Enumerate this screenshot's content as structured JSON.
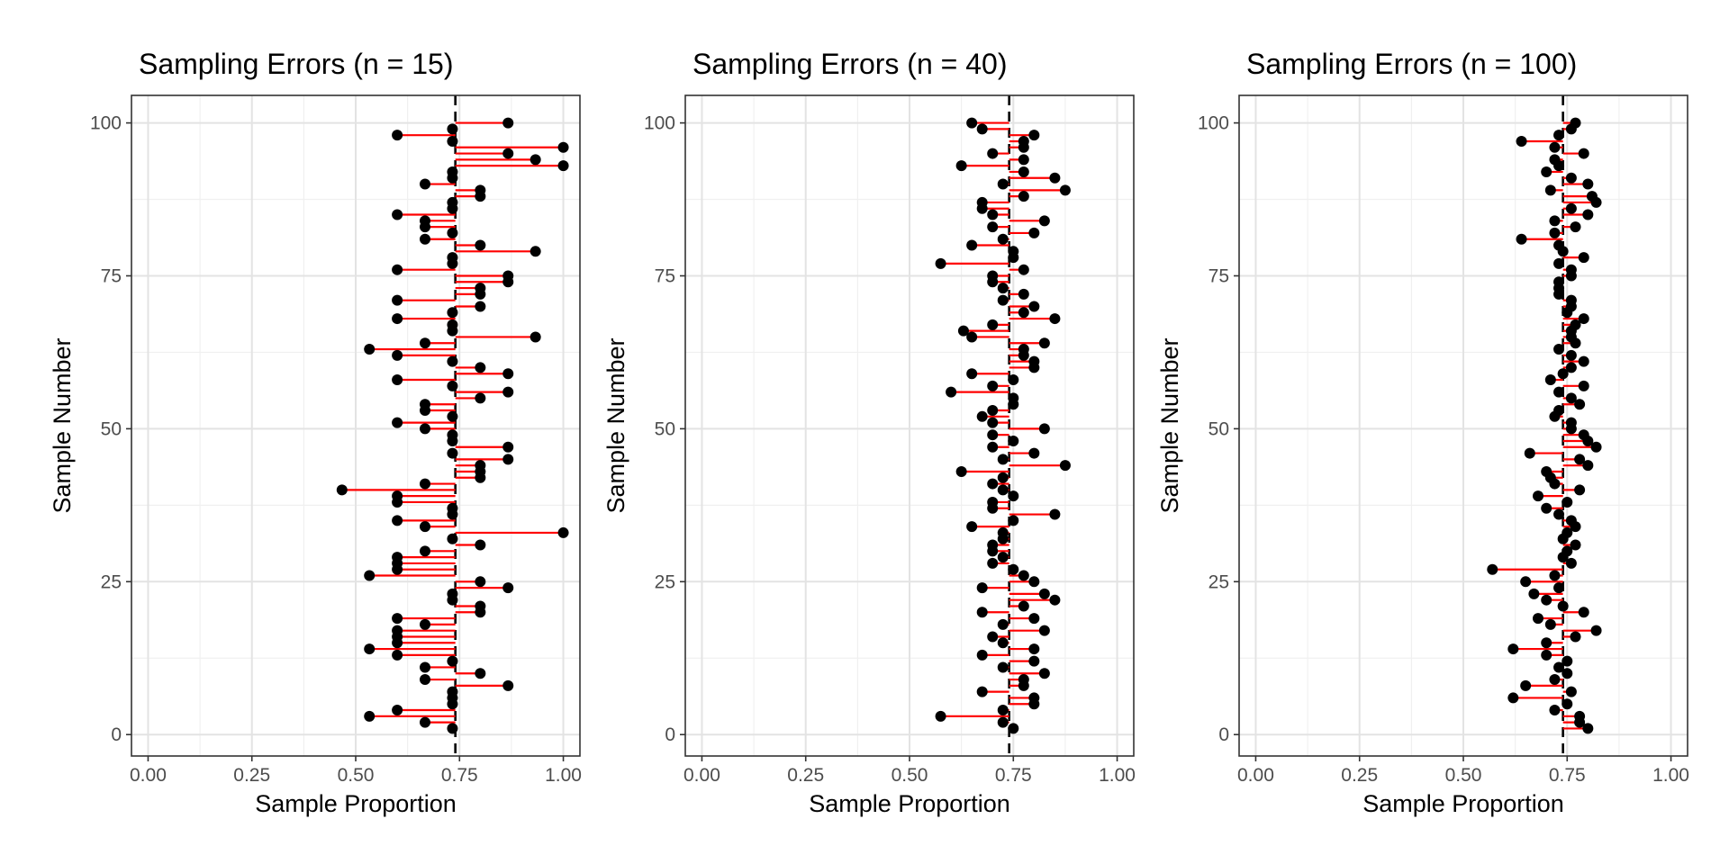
{
  "chart_data": [
    {
      "type": "scatter",
      "title": "Sampling Errors (n = 15)",
      "xlabel": "Sample Proportion",
      "ylabel": "Sample Number",
      "xlim": [
        -0.04,
        1.04
      ],
      "ylim": [
        -3.5,
        104.5
      ],
      "xticks": [
        "0.00",
        "0.25",
        "0.50",
        "0.75",
        "1.00"
      ],
      "yticks": [
        "0",
        "25",
        "50",
        "75",
        "100"
      ],
      "reference_line": 0.74,
      "grid": true,
      "point_color": "#000000",
      "segment_color": "#ff0000",
      "reference_color": "#000000",
      "sample_number": [
        1,
        2,
        3,
        4,
        5,
        6,
        7,
        8,
        9,
        10,
        11,
        12,
        13,
        14,
        15,
        16,
        17,
        18,
        19,
        20,
        21,
        22,
        23,
        24,
        25,
        26,
        27,
        28,
        29,
        30,
        31,
        32,
        33,
        34,
        35,
        36,
        37,
        38,
        39,
        40,
        41,
        42,
        43,
        44,
        45,
        46,
        47,
        48,
        49,
        50,
        51,
        52,
        53,
        54,
        55,
        56,
        57,
        58,
        59,
        60,
        61,
        62,
        63,
        64,
        65,
        66,
        67,
        68,
        69,
        70,
        71,
        72,
        73,
        74,
        75,
        76,
        77,
        78,
        79,
        80,
        81,
        82,
        83,
        84,
        85,
        86,
        87,
        88,
        89,
        90,
        91,
        92,
        93,
        94,
        95,
        96,
        97,
        98,
        99,
        100
      ],
      "sample_proportion": [
        0.733,
        0.667,
        0.533,
        0.6,
        0.733,
        0.733,
        0.733,
        0.867,
        0.667,
        0.8,
        0.667,
        0.733,
        0.6,
        0.533,
        0.6,
        0.6,
        0.6,
        0.667,
        0.6,
        0.8,
        0.8,
        0.733,
        0.733,
        0.867,
        0.8,
        0.533,
        0.6,
        0.6,
        0.6,
        0.667,
        0.8,
        0.733,
        1.0,
        0.667,
        0.6,
        0.733,
        0.733,
        0.6,
        0.6,
        0.467,
        0.667,
        0.8,
        0.8,
        0.8,
        0.867,
        0.733,
        0.867,
        0.733,
        0.733,
        0.667,
        0.6,
        0.733,
        0.667,
        0.667,
        0.8,
        0.867,
        0.733,
        0.6,
        0.867,
        0.8,
        0.733,
        0.6,
        0.533,
        0.667,
        0.933,
        0.733,
        0.733,
        0.6,
        0.733,
        0.8,
        0.6,
        0.8,
        0.8,
        0.867,
        0.867,
        0.6,
        0.733,
        0.733,
        0.933,
        0.8,
        0.667,
        0.733,
        0.667,
        0.667,
        0.6,
        0.733,
        0.733,
        0.8,
        0.8,
        0.667,
        0.733,
        0.733,
        1.0,
        0.933,
        0.867,
        1.0,
        0.733,
        0.6,
        0.733,
        0.867
      ]
    },
    {
      "type": "scatter",
      "title": "Sampling Errors (n = 40)",
      "xlabel": "Sample Proportion",
      "ylabel": "Sample Number",
      "xlim": [
        -0.04,
        1.04
      ],
      "ylim": [
        -3.5,
        104.5
      ],
      "xticks": [
        "0.00",
        "0.25",
        "0.50",
        "0.75",
        "1.00"
      ],
      "yticks": [
        "0",
        "25",
        "50",
        "75",
        "100"
      ],
      "reference_line": 0.74,
      "grid": true,
      "point_color": "#000000",
      "segment_color": "#ff0000",
      "reference_color": "#000000",
      "sample_number": [
        1,
        2,
        3,
        4,
        5,
        6,
        7,
        8,
        9,
        10,
        11,
        12,
        13,
        14,
        15,
        16,
        17,
        18,
        19,
        20,
        21,
        22,
        23,
        24,
        25,
        26,
        27,
        28,
        29,
        30,
        31,
        32,
        33,
        34,
        35,
        36,
        37,
        38,
        39,
        40,
        41,
        42,
        43,
        44,
        45,
        46,
        47,
        48,
        49,
        50,
        51,
        52,
        53,
        54,
        55,
        56,
        57,
        58,
        59,
        60,
        61,
        62,
        63,
        64,
        65,
        66,
        67,
        68,
        69,
        70,
        71,
        72,
        73,
        74,
        75,
        76,
        77,
        78,
        79,
        80,
        81,
        82,
        83,
        84,
        85,
        86,
        87,
        88,
        89,
        90,
        91,
        92,
        93,
        94,
        95,
        96,
        97,
        98,
        99,
        100
      ],
      "sample_proportion": [
        0.75,
        0.725,
        0.575,
        0.725,
        0.8,
        0.8,
        0.675,
        0.775,
        0.775,
        0.825,
        0.725,
        0.8,
        0.675,
        0.8,
        0.725,
        0.7,
        0.825,
        0.725,
        0.8,
        0.675,
        0.775,
        0.85,
        0.825,
        0.675,
        0.8,
        0.775,
        0.75,
        0.7,
        0.725,
        0.7,
        0.7,
        0.725,
        0.725,
        0.65,
        0.75,
        0.85,
        0.7,
        0.7,
        0.75,
        0.725,
        0.7,
        0.725,
        0.625,
        0.875,
        0.725,
        0.8,
        0.7,
        0.75,
        0.7,
        0.825,
        0.7,
        0.675,
        0.7,
        0.75,
        0.75,
        0.6,
        0.7,
        0.75,
        0.65,
        0.8,
        0.8,
        0.775,
        0.775,
        0.825,
        0.65,
        0.63,
        0.7,
        0.85,
        0.775,
        0.8,
        0.725,
        0.775,
        0.725,
        0.7,
        0.7,
        0.775,
        0.575,
        0.75,
        0.75,
        0.65,
        0.725,
        0.8,
        0.7,
        0.825,
        0.7,
        0.675,
        0.675,
        0.775,
        0.875,
        0.725,
        0.85,
        0.775,
        0.625,
        0.775,
        0.7,
        0.775,
        0.775,
        0.8,
        0.675,
        0.65
      ]
    },
    {
      "type": "scatter",
      "title": "Sampling Errors (n = 100)",
      "xlabel": "Sample Proportion",
      "ylabel": "Sample Number",
      "xlim": [
        -0.04,
        1.04
      ],
      "ylim": [
        -3.5,
        104.5
      ],
      "xticks": [
        "0.00",
        "0.25",
        "0.50",
        "0.75",
        "1.00"
      ],
      "yticks": [
        "0",
        "25",
        "50",
        "75",
        "100"
      ],
      "reference_line": 0.74,
      "grid": true,
      "point_color": "#000000",
      "segment_color": "#ff0000",
      "reference_color": "#000000",
      "sample_number": [
        1,
        2,
        3,
        4,
        5,
        6,
        7,
        8,
        9,
        10,
        11,
        12,
        13,
        14,
        15,
        16,
        17,
        18,
        19,
        20,
        21,
        22,
        23,
        24,
        25,
        26,
        27,
        28,
        29,
        30,
        31,
        32,
        33,
        34,
        35,
        36,
        37,
        38,
        39,
        40,
        41,
        42,
        43,
        44,
        45,
        46,
        47,
        48,
        49,
        50,
        51,
        52,
        53,
        54,
        55,
        56,
        57,
        58,
        59,
        60,
        61,
        62,
        63,
        64,
        65,
        66,
        67,
        68,
        69,
        70,
        71,
        72,
        73,
        74,
        75,
        76,
        77,
        78,
        79,
        80,
        81,
        82,
        83,
        84,
        85,
        86,
        87,
        88,
        89,
        90,
        91,
        92,
        93,
        94,
        95,
        96,
        97,
        98,
        99,
        100
      ],
      "sample_proportion": [
        0.8,
        0.78,
        0.78,
        0.72,
        0.75,
        0.62,
        0.76,
        0.65,
        0.72,
        0.75,
        0.73,
        0.75,
        0.7,
        0.62,
        0.7,
        0.77,
        0.82,
        0.71,
        0.68,
        0.79,
        0.74,
        0.7,
        0.67,
        0.73,
        0.65,
        0.72,
        0.57,
        0.76,
        0.74,
        0.75,
        0.77,
        0.74,
        0.75,
        0.77,
        0.76,
        0.73,
        0.7,
        0.75,
        0.68,
        0.78,
        0.72,
        0.71,
        0.7,
        0.8,
        0.78,
        0.66,
        0.82,
        0.8,
        0.79,
        0.76,
        0.76,
        0.72,
        0.73,
        0.78,
        0.76,
        0.73,
        0.79,
        0.71,
        0.74,
        0.76,
        0.79,
        0.76,
        0.73,
        0.77,
        0.76,
        0.76,
        0.77,
        0.79,
        0.75,
        0.76,
        0.76,
        0.73,
        0.73,
        0.73,
        0.76,
        0.76,
        0.73,
        0.79,
        0.74,
        0.73,
        0.64,
        0.72,
        0.77,
        0.72,
        0.8,
        0.76,
        0.82,
        0.81,
        0.71,
        0.8,
        0.76,
        0.7,
        0.73,
        0.72,
        0.79,
        0.72,
        0.64,
        0.73,
        0.76,
        0.77
      ]
    }
  ]
}
